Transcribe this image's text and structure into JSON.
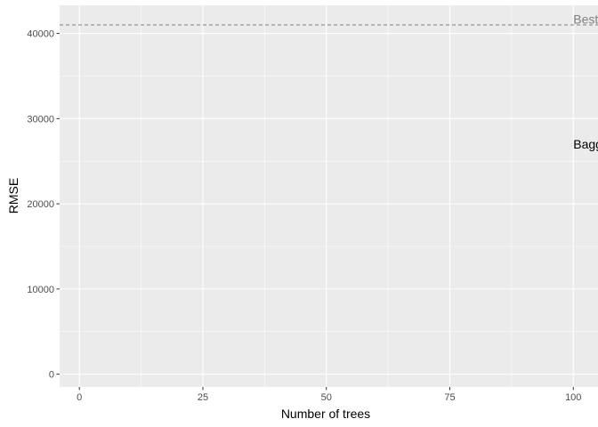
{
  "chart_data": {
    "type": "line",
    "xlabel": "Number of trees",
    "ylabel": "RMSE",
    "xlim": [
      -4,
      105
    ],
    "ylim": [
      -1500,
      43300
    ],
    "x_ticks": [
      0,
      25,
      50,
      75,
      100
    ],
    "x_tick_labels": [
      "0",
      "25",
      "50",
      "75",
      "100"
    ],
    "y_ticks": [
      0,
      10000,
      20000,
      30000,
      40000
    ],
    "y_tick_labels": [
      "0",
      "10000",
      "20000",
      "30000",
      "40000"
    ],
    "grid": true,
    "reference_lines": [
      {
        "y": 41000,
        "style": "dashed",
        "color": "#808080"
      }
    ],
    "annotations": [
      {
        "text": "Best",
        "x": 100,
        "y": 41700,
        "color": "#808080"
      },
      {
        "text": "Bagg",
        "x": 100,
        "y": 27000,
        "color": "#000000"
      }
    ],
    "series": []
  },
  "colors": {
    "panel_background": "#ebebeb",
    "gridline": "#ffffff",
    "tick_mark": "#333333"
  }
}
